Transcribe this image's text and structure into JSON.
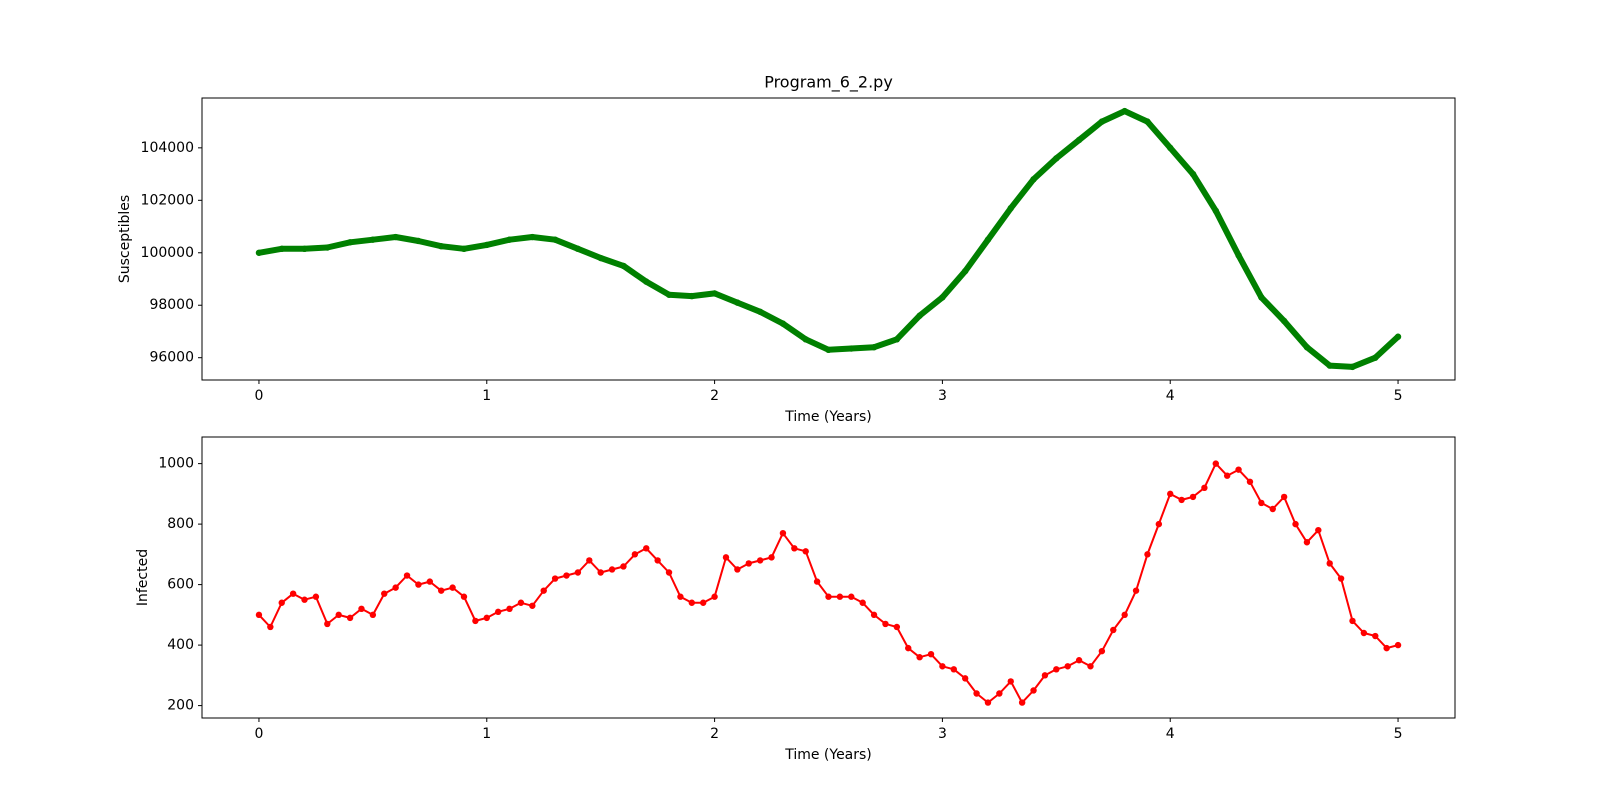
{
  "chart_data": [
    {
      "type": "line",
      "title": "Program_6_2.py",
      "x_label": "Time (Years)",
      "y_label": "Susceptibles",
      "xlim": [
        -0.25,
        5.25
      ],
      "xticks": [
        0,
        1,
        2,
        3,
        4,
        5
      ],
      "ylim": [
        95150,
        105900
      ],
      "yticks": [
        96000,
        98000,
        100000,
        102000,
        104000
      ],
      "series": [
        {
          "name": "Susceptibles",
          "color": "#008000",
          "x": [
            0,
            0.1,
            0.2,
            0.3,
            0.4,
            0.5,
            0.6,
            0.7,
            0.8,
            0.9,
            1.0,
            1.1,
            1.2,
            1.3,
            1.4,
            1.5,
            1.6,
            1.7,
            1.8,
            1.9,
            2.0,
            2.1,
            2.2,
            2.3,
            2.4,
            2.5,
            2.6,
            2.7,
            2.8,
            2.9,
            3.0,
            3.1,
            3.2,
            3.3,
            3.4,
            3.5,
            3.6,
            3.7,
            3.8,
            3.9,
            4.0,
            4.1,
            4.2,
            4.3,
            4.4,
            4.5,
            4.6,
            4.7,
            4.8,
            4.9,
            5.0
          ],
          "values": [
            100000,
            100150,
            100150,
            100200,
            100400,
            100500,
            100600,
            100450,
            100250,
            100150,
            100300,
            100500,
            100600,
            100500,
            100150,
            99800,
            99500,
            98900,
            98400,
            98350,
            98450,
            98100,
            97750,
            97300,
            96700,
            96300,
            96350,
            96400,
            96700,
            97600,
            98300,
            99300,
            100500,
            101700,
            102800,
            103600,
            104300,
            105000,
            105400,
            105000,
            104000,
            103000,
            101600,
            99900,
            98300,
            97400,
            96400,
            95700,
            95650,
            96000,
            96800
          ]
        }
      ]
    },
    {
      "type": "line",
      "x_label": "Time (Years)",
      "y_label": "Infected",
      "xlim": [
        -0.25,
        5.25
      ],
      "xticks": [
        0,
        1,
        2,
        3,
        4,
        5
      ],
      "ylim": [
        159,
        1088
      ],
      "yticks": [
        200,
        400,
        600,
        800,
        1000
      ],
      "series": [
        {
          "name": "Infected",
          "color": "#ff0000",
          "x": [
            0,
            0.05,
            0.1,
            0.15,
            0.2,
            0.25,
            0.3,
            0.35,
            0.4,
            0.45,
            0.5,
            0.55,
            0.6,
            0.65,
            0.7,
            0.75,
            0.8,
            0.85,
            0.9,
            0.95,
            1.0,
            1.05,
            1.1,
            1.15,
            1.2,
            1.25,
            1.3,
            1.35,
            1.4,
            1.45,
            1.5,
            1.55,
            1.6,
            1.65,
            1.7,
            1.75,
            1.8,
            1.85,
            1.9,
            1.95,
            2.0,
            2.05,
            2.1,
            2.15,
            2.2,
            2.25,
            2.3,
            2.35,
            2.4,
            2.45,
            2.5,
            2.55,
            2.6,
            2.65,
            2.7,
            2.75,
            2.8,
            2.85,
            2.9,
            2.95,
            3.0,
            3.05,
            3.1,
            3.15,
            3.2,
            3.25,
            3.3,
            3.35,
            3.4,
            3.45,
            3.5,
            3.55,
            3.6,
            3.65,
            3.7,
            3.75,
            3.8,
            3.85,
            3.9,
            3.95,
            4.0,
            4.05,
            4.1,
            4.15,
            4.2,
            4.25,
            4.3,
            4.35,
            4.4,
            4.45,
            4.5,
            4.55,
            4.6,
            4.65,
            4.7,
            4.75,
            4.8,
            4.85,
            4.9,
            4.95,
            5.0
          ],
          "values": [
            500,
            460,
            540,
            570,
            550,
            560,
            470,
            500,
            490,
            520,
            500,
            570,
            590,
            630,
            600,
            610,
            580,
            590,
            560,
            480,
            490,
            510,
            520,
            540,
            530,
            580,
            620,
            630,
            640,
            680,
            640,
            650,
            660,
            700,
            720,
            680,
            640,
            560,
            540,
            540,
            560,
            690,
            650,
            670,
            680,
            690,
            770,
            720,
            710,
            610,
            560,
            560,
            560,
            540,
            500,
            470,
            460,
            390,
            360,
            370,
            330,
            320,
            290,
            240,
            210,
            240,
            280,
            210,
            250,
            300,
            320,
            330,
            350,
            330,
            380,
            450,
            500,
            580,
            700,
            800,
            900,
            880,
            890,
            920,
            1000,
            960,
            980,
            940,
            870,
            850,
            890,
            800,
            740,
            780,
            670,
            620,
            480,
            440,
            430,
            390,
            400
          ]
        }
      ]
    }
  ]
}
